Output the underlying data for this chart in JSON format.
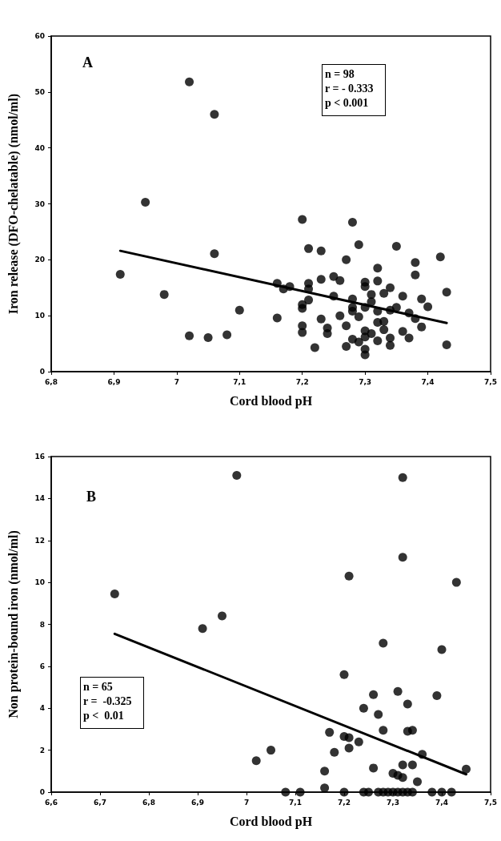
{
  "chart_data": [
    {
      "type": "scatter",
      "xlabel": "Cord blood pH",
      "ylabel": "Iron release (DFO-chelatable) (nmol/ml)",
      "annotations": [
        "A",
        "n = 98",
        "r = - 0.333",
        "p < 0.001"
      ],
      "xlim": [
        6.8,
        7.5
      ],
      "ylim": [
        0,
        60
      ],
      "xticks": [
        {
          "value": 6.8,
          "label": "6,8"
        },
        {
          "value": 6.9,
          "label": "6,9"
        },
        7,
        {
          "value": 7.1,
          "label": "7,1"
        },
        {
          "value": 7.2,
          "label": "7,2"
        },
        {
          "value": 7.3,
          "label": "7,3"
        },
        {
          "value": 7.4,
          "label": "7,4"
        },
        {
          "value": 7.5,
          "label": "7,5"
        }
      ],
      "yticks": [
        0,
        10,
        20,
        30,
        40,
        50,
        60
      ],
      "grid": false,
      "marker": "circle",
      "series": [
        {
          "color": "#000000",
          "x": [
            6.91,
            6.95,
            6.98,
            7.02,
            7.06,
            7.06,
            7.02,
            7.05,
            7.08,
            7.1,
            7.16,
            7.16,
            7.17,
            7.18,
            7.2,
            7.21,
            7.23,
            7.2,
            7.2,
            7.2,
            7.2,
            7.21,
            7.21,
            7.21,
            7.22,
            7.23,
            7.23,
            7.24,
            7.24,
            7.25,
            7.26,
            7.25,
            7.26,
            7.27,
            7.27,
            7.27,
            7.28,
            7.28,
            7.28,
            7.28,
            7.28,
            7.29,
            7.29,
            7.29,
            7.3,
            7.3,
            7.3,
            7.3,
            7.3,
            7.3,
            7.3,
            7.31,
            7.31,
            7.31,
            7.32,
            7.32,
            7.32,
            7.32,
            7.32,
            7.33,
            7.33,
            7.33,
            7.34,
            7.34,
            7.34,
            7.34,
            7.35,
            7.35,
            7.36,
            7.36,
            7.37,
            7.37,
            7.38,
            7.38,
            7.38,
            7.39,
            7.39,
            7.4,
            7.42,
            7.43,
            7.43
          ],
          "values": [
            17.4,
            30.3,
            13.8,
            51.8,
            46,
            21.1,
            6.4,
            6.1,
            6.6,
            11,
            15.8,
            9.6,
            14.8,
            15.2,
            27.2,
            22,
            21.6,
            11.3,
            12,
            8.2,
            7,
            15.8,
            14.8,
            12.8,
            4.3,
            16.5,
            9.4,
            7.8,
            6.8,
            17,
            16.3,
            13.5,
            10,
            20,
            8.2,
            4.5,
            26.7,
            13,
            11.5,
            10.8,
            5.8,
            22.7,
            9.8,
            5.3,
            16,
            15.2,
            11.5,
            7.3,
            6.2,
            4,
            3,
            13.8,
            12.5,
            6.8,
            18.5,
            16.2,
            10.8,
            8.8,
            5.5,
            14,
            9,
            7.5,
            15,
            11,
            6,
            4.7,
            22.4,
            11.5,
            13.5,
            7.2,
            10.5,
            6,
            19.5,
            17.3,
            9.5,
            13,
            8,
            11.6,
            20.5,
            14.2,
            4.8
          ]
        },
        {
          "type": "line",
          "color": "#000000",
          "marker": "none",
          "x": [
            6.91,
            7.43
          ],
          "values": [
            21.6,
            8.7
          ]
        }
      ]
    },
    {
      "type": "scatter",
      "xlabel": "Cord blood pH",
      "ylabel": "Non protein-bound iron (nmol/ml)",
      "annotations": [
        "B",
        "n = 65",
        "r =  -0.325",
        "p <  0.01"
      ],
      "xlim": [
        6.6,
        7.5
      ],
      "ylim": [
        0,
        16
      ],
      "xticks": [
        {
          "value": 6.6,
          "label": "6,6"
        },
        {
          "value": 6.7,
          "label": "6,7"
        },
        {
          "value": 6.8,
          "label": "6,8"
        },
        {
          "value": 6.9,
          "label": "6,9"
        },
        7,
        {
          "value": 7.1,
          "label": "7,1"
        },
        {
          "value": 7.2,
          "label": "7,2"
        },
        {
          "value": 7.3,
          "label": "7,3"
        },
        {
          "value": 7.4,
          "label": "7,4"
        },
        {
          "value": 7.5,
          "label": "7,5"
        }
      ],
      "yticks": [
        0,
        2,
        4,
        6,
        8,
        10,
        12,
        14,
        16
      ],
      "grid": false,
      "marker": "circle",
      "series": [
        {
          "color": "#000000",
          "x": [
            6.73,
            6.91,
            6.95,
            6.98,
            7.32,
            7.32,
            7.21,
            7.43,
            7.4,
            7.28,
            7.2,
            7.39,
            7.26,
            7.31,
            7.33,
            7.24,
            7.27,
            7.28,
            7.33,
            7.34,
            7.17,
            7.2,
            7.21,
            7.21,
            7.23,
            7.18,
            7.05,
            7.02,
            7.16,
            7.26,
            7.3,
            7.31,
            7.32,
            7.32,
            7.34,
            7.36,
            7.45,
            7.35,
            7.16,
            7.08,
            7.11,
            7.2,
            7.24,
            7.25,
            7.27,
            7.28,
            7.29,
            7.3,
            7.31,
            7.32,
            7.33,
            7.34,
            7.38,
            7.4,
            7.42
          ],
          "values": [
            9.45,
            7.8,
            8.4,
            15.1,
            15.0,
            11.2,
            10.3,
            10.0,
            6.8,
            7.1,
            5.6,
            4.6,
            4.65,
            4.8,
            4.2,
            4.0,
            3.7,
            2.95,
            2.9,
            2.95,
            2.85,
            2.65,
            2.6,
            2.1,
            2.4,
            1.9,
            2.0,
            1.5,
            1.0,
            1.15,
            0.9,
            0.8,
            1.3,
            0.7,
            1.3,
            1.8,
            1.1,
            0.5,
            0.2,
            0,
            0,
            0,
            0,
            0,
            0,
            0,
            0,
            0,
            0,
            0,
            0,
            0,
            0,
            0,
            0
          ]
        },
        {
          "type": "line",
          "color": "#000000",
          "marker": "none",
          "x": [
            6.73,
            7.45
          ],
          "values": [
            7.55,
            0.85
          ]
        }
      ]
    }
  ]
}
